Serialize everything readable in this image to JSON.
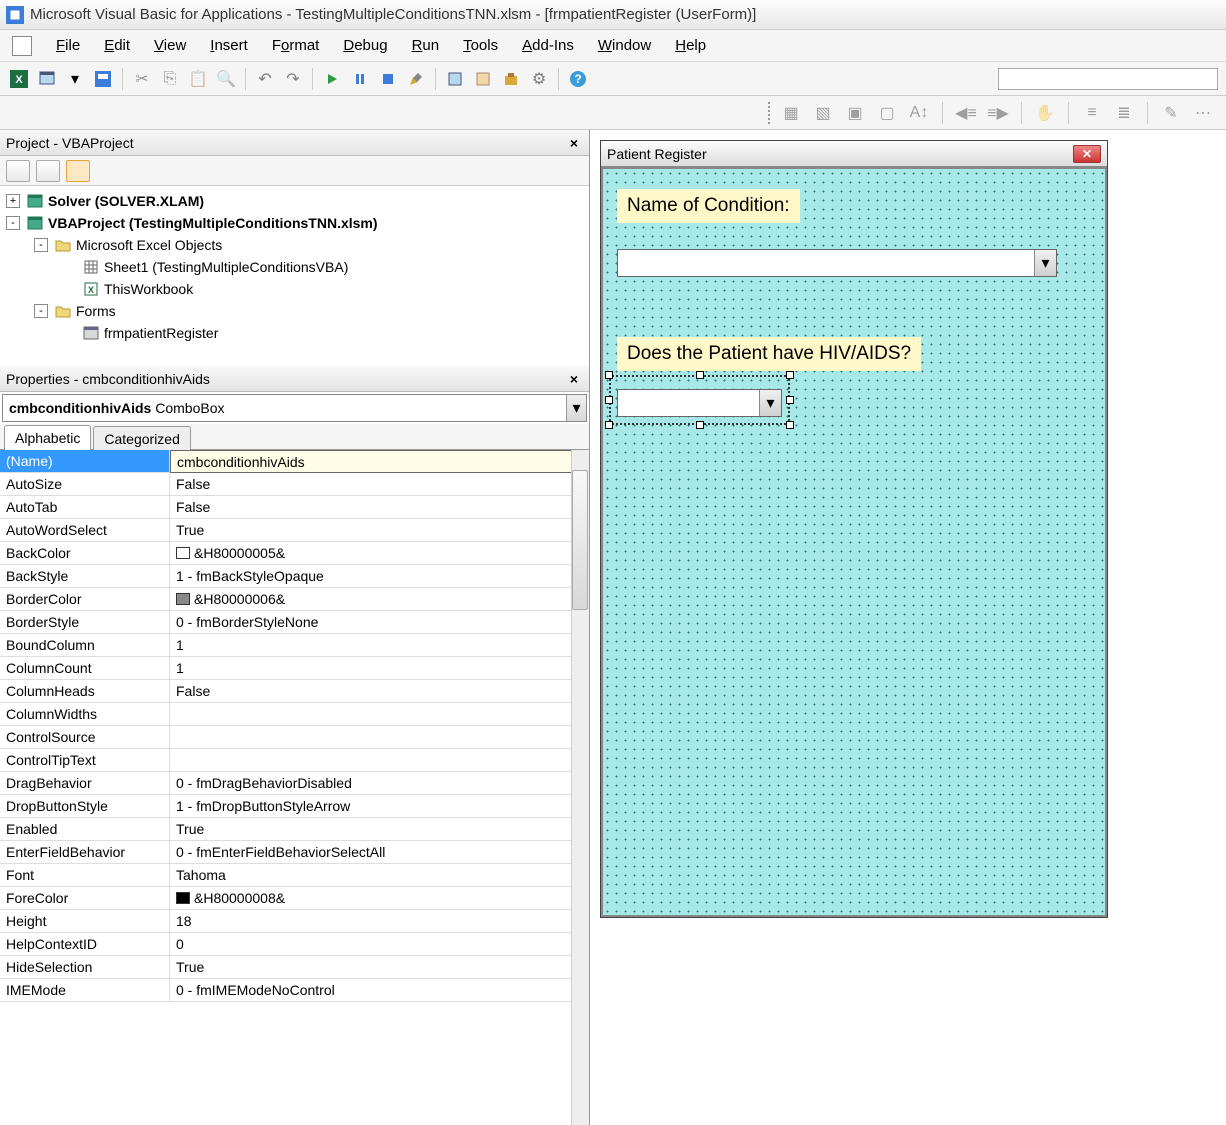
{
  "window": {
    "title": "Microsoft Visual Basic for Applications - TestingMultipleConditionsTNN.xlsm - [frmpatientRegister (UserForm)]"
  },
  "menu": [
    "File",
    "Edit",
    "View",
    "Insert",
    "Format",
    "Debug",
    "Run",
    "Tools",
    "Add-Ins",
    "Window",
    "Help"
  ],
  "project": {
    "title": "Project - VBAProject",
    "tree": [
      {
        "indent": 0,
        "toggle": "+",
        "icon": "vba",
        "label": "Solver (SOLVER.XLAM)",
        "bold": true
      },
      {
        "indent": 0,
        "toggle": "-",
        "icon": "vba",
        "label": "VBAProject (TestingMultipleConditionsTNN.xlsm)",
        "bold": true
      },
      {
        "indent": 1,
        "toggle": "-",
        "icon": "folder",
        "label": "Microsoft Excel Objects",
        "bold": false
      },
      {
        "indent": 2,
        "toggle": "",
        "icon": "sheet",
        "label": "Sheet1 (TestingMultipleConditionsVBA)",
        "bold": false
      },
      {
        "indent": 2,
        "toggle": "",
        "icon": "wb",
        "label": "ThisWorkbook",
        "bold": false
      },
      {
        "indent": 1,
        "toggle": "-",
        "icon": "folder",
        "label": "Forms",
        "bold": false
      },
      {
        "indent": 2,
        "toggle": "",
        "icon": "form",
        "label": "frmpatientRegister",
        "bold": false
      }
    ]
  },
  "properties": {
    "title": "Properties - cmbconditionhivAids",
    "object_name": "cmbconditionhivAids",
    "object_type": "ComboBox",
    "tabs": [
      "Alphabetic",
      "Categorized"
    ],
    "rows": [
      {
        "name": "(Name)",
        "val": "cmbconditionhivAids",
        "selected": true
      },
      {
        "name": "AutoSize",
        "val": "False"
      },
      {
        "name": "AutoTab",
        "val": "False"
      },
      {
        "name": "AutoWordSelect",
        "val": "True"
      },
      {
        "name": "BackColor",
        "val": "&H80000005&",
        "swatch": "#ffffff"
      },
      {
        "name": "BackStyle",
        "val": "1 - fmBackStyleOpaque"
      },
      {
        "name": "BorderColor",
        "val": "&H80000006&",
        "swatch": "#888888"
      },
      {
        "name": "BorderStyle",
        "val": "0 - fmBorderStyleNone"
      },
      {
        "name": "BoundColumn",
        "val": "1"
      },
      {
        "name": "ColumnCount",
        "val": "1"
      },
      {
        "name": "ColumnHeads",
        "val": "False"
      },
      {
        "name": "ColumnWidths",
        "val": ""
      },
      {
        "name": "ControlSource",
        "val": ""
      },
      {
        "name": "ControlTipText",
        "val": ""
      },
      {
        "name": "DragBehavior",
        "val": "0 - fmDragBehaviorDisabled"
      },
      {
        "name": "DropButtonStyle",
        "val": "1 - fmDropButtonStyleArrow"
      },
      {
        "name": "Enabled",
        "val": "True"
      },
      {
        "name": "EnterFieldBehavior",
        "val": "0 - fmEnterFieldBehaviorSelectAll"
      },
      {
        "name": "Font",
        "val": "Tahoma"
      },
      {
        "name": "ForeColor",
        "val": "&H80000008&",
        "swatch": "#000000"
      },
      {
        "name": "Height",
        "val": "18"
      },
      {
        "name": "HelpContextID",
        "val": "0"
      },
      {
        "name": "HideSelection",
        "val": "True"
      },
      {
        "name": "IMEMode",
        "val": "0 - fmIMEModeNoControl"
      }
    ]
  },
  "form": {
    "title": "Patient Register",
    "label1": "Name of Condition:",
    "label2": "Does the Patient have HIV/AIDS?"
  },
  "colors": {
    "form_bg": "#a8e8e8",
    "label_bg": "#fff8c8",
    "selected_row": "#3399ff"
  }
}
